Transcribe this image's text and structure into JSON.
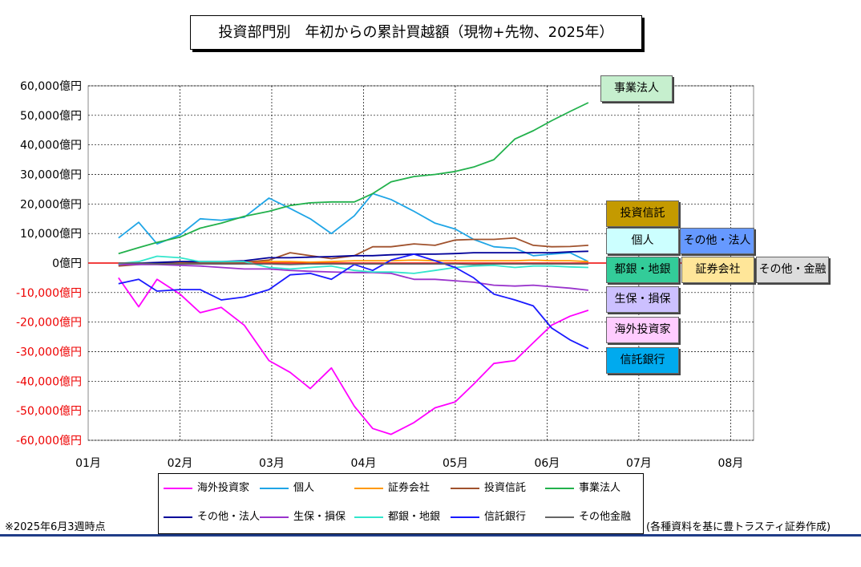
{
  "title": "投資部門別　年初からの累計買越額（現物+先物、2025年）",
  "note_left": "※2025年6月3週時点",
  "note_right": "(各種資料を基に豊トラスティ証券作成)",
  "chart_data": {
    "type": "line",
    "title": "投資部門別　年初からの累計買越額（現物+先物、2025年）",
    "xlabel": "",
    "ylabel": "",
    "ylim": [
      -60000,
      60000
    ],
    "yticks": [
      60000,
      50000,
      40000,
      30000,
      20000,
      10000,
      0,
      -10000,
      -20000,
      -30000,
      -40000,
      -50000,
      -60000
    ],
    "ytick_labels": [
      "60,000億円",
      "50,000億円",
      "40,000億円",
      "30,000億円",
      "20,000億円",
      "10,000億円",
      "0億円",
      "-10,000億円",
      "-20,000億円",
      "-30,000億円",
      "-40,000億円",
      "-50,000億円",
      "-60,000億円"
    ],
    "xtick_labels": [
      "01月",
      "02月",
      "03月",
      "04月",
      "05月",
      "06月",
      "07月",
      "08月"
    ],
    "xlim_months": [
      0,
      7.25
    ],
    "x_weeks": [
      0.33,
      0.55,
      0.75,
      1.0,
      1.22,
      1.45,
      1.7,
      1.97,
      2.2,
      2.42,
      2.65,
      2.9,
      3.1,
      3.3,
      3.55,
      3.78,
      4.0,
      4.2,
      4.42,
      4.65,
      4.85,
      5.05,
      5.25,
      5.45,
      5.65
    ],
    "grid": true,
    "legend_position": "bottom",
    "series": [
      {
        "name": "海外投資家",
        "color": "#ff00ff",
        "values": [
          -5000,
          -14800,
          -5500,
          -10500,
          -16800,
          -15000,
          -21000,
          -33000,
          -37000,
          -42500,
          -35500,
          -48500,
          -56000,
          -58000,
          -54000,
          -49000,
          -47000,
          -41000,
          -34000,
          -33000,
          -27000,
          -21000,
          -18000,
          -16000,
          null
        ]
      },
      {
        "name": "個人",
        "color": "#1fa5e6",
        "values": [
          8500,
          13800,
          6500,
          9500,
          15000,
          14500,
          15500,
          22000,
          18500,
          15000,
          10000,
          16000,
          23500,
          21500,
          17500,
          13500,
          11500,
          8000,
          5500,
          5000,
          2500,
          3000,
          3500,
          500,
          null
        ]
      },
      {
        "name": "証券会社",
        "color": "#ff9900",
        "values": [
          -500,
          0,
          0,
          300,
          300,
          300,
          500,
          500,
          500,
          300,
          500,
          800,
          800,
          800,
          1000,
          800,
          800,
          800,
          800,
          800,
          1000,
          800,
          800,
          500,
          null
        ]
      },
      {
        "name": "投資信託",
        "color": "#a0522d",
        "values": [
          -1000,
          -500,
          0,
          -200,
          200,
          200,
          300,
          1000,
          3500,
          2500,
          1500,
          2500,
          5500,
          5500,
          6500,
          6000,
          7800,
          8000,
          8000,
          8500,
          6000,
          5500,
          5600,
          6000,
          null
        ]
      },
      {
        "name": "事業法人",
        "color": "#22b14c",
        "values": [
          3200,
          5200,
          7000,
          8800,
          11800,
          13500,
          15800,
          17500,
          19500,
          20400,
          20700,
          20700,
          23500,
          27500,
          29300,
          30000,
          31000,
          32500,
          35000,
          42000,
          44800,
          48200,
          51300,
          54300,
          null
        ]
      },
      {
        "name": "その他・法人",
        "color": "#000099",
        "values": [
          -500,
          0,
          200,
          500,
          500,
          500,
          800,
          1800,
          1800,
          2000,
          2200,
          2500,
          2500,
          2800,
          3000,
          3000,
          3200,
          3500,
          3500,
          3500,
          3500,
          3500,
          3800,
          4000,
          null
        ]
      },
      {
        "name": "生保・損保",
        "color": "#9933cc",
        "values": [
          -500,
          -500,
          -500,
          -800,
          -1000,
          -1500,
          -2000,
          -2000,
          -2500,
          -2800,
          -3000,
          -3200,
          -3200,
          -3500,
          -5500,
          -5500,
          -6000,
          -6500,
          -7500,
          -7800,
          -7500,
          -8000,
          -8500,
          -9200,
          null
        ]
      },
      {
        "name": "都銀・地銀",
        "color": "#33e6cc",
        "values": [
          -200,
          500,
          2300,
          1800,
          500,
          500,
          500,
          -1500,
          -2000,
          -1500,
          -1000,
          -2500,
          -3000,
          -3000,
          -3500,
          -2500,
          -1500,
          -1000,
          -800,
          -1500,
          -1000,
          -1000,
          -1300,
          -1500,
          null
        ]
      },
      {
        "name": "信託銀行",
        "color": "#1a1aff",
        "values": [
          -7000,
          -5500,
          -9500,
          -9000,
          -9000,
          -12500,
          -11500,
          -9000,
          -4000,
          -3500,
          -5500,
          -500,
          -2500,
          1000,
          3000,
          800,
          -1500,
          -5000,
          -10500,
          -12500,
          -14500,
          -22000,
          -26000,
          -29000,
          null
        ]
      },
      {
        "name": "その他金融",
        "color": "#666666",
        "values": [
          0,
          0,
          -300,
          -300,
          -300,
          -300,
          -300,
          -300,
          -500,
          -300,
          -300,
          -300,
          -300,
          -300,
          -300,
          -300,
          -300,
          -500,
          -300,
          -300,
          -300,
          -300,
          -300,
          -300,
          null
        ]
      }
    ]
  },
  "rank_boxes": [
    {
      "label": "事業法人",
      "bg": "#c6efce"
    },
    {
      "label": "投資信託",
      "bg": "#c49a00"
    },
    {
      "label": "個人",
      "bg": "#ccffff"
    },
    {
      "label": "その他・法人",
      "bg": "#6699ff"
    },
    {
      "label": "都銀・地銀",
      "bg": "#33cc99"
    },
    {
      "label": "証券会社",
      "bg": "#ffe699"
    },
    {
      "label": "その他・金融",
      "bg": "#dddddd"
    },
    {
      "label": "生保・損保",
      "bg": "#ccc0ff"
    },
    {
      "label": "海外投資家",
      "bg": "#ffccff"
    },
    {
      "label": "信託銀行",
      "bg": "#00aaee"
    }
  ],
  "legend": [
    {
      "label": "海外投資家",
      "color": "#ff00ff"
    },
    {
      "label": "個人",
      "color": "#1fa5e6"
    },
    {
      "label": "証券会社",
      "color": "#ff9900"
    },
    {
      "label": "投資信託",
      "color": "#a0522d"
    },
    {
      "label": "事業法人",
      "color": "#22b14c"
    },
    {
      "label": "その他・法人",
      "color": "#000099"
    },
    {
      "label": "生保・損保",
      "color": "#9933cc"
    },
    {
      "label": "都銀・地銀",
      "color": "#33e6cc"
    },
    {
      "label": "信託銀行",
      "color": "#1a1aff"
    },
    {
      "label": "その他金融",
      "color": "#666666"
    }
  ]
}
